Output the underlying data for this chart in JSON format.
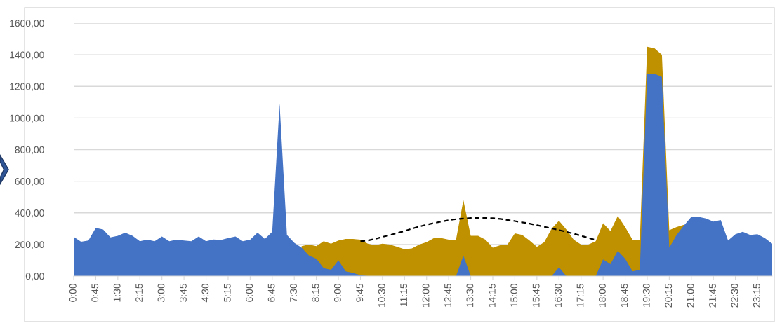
{
  "chart_data": {
    "type": "area",
    "categories": [
      "0:00",
      null,
      null,
      "0:45",
      null,
      null,
      "1:30",
      null,
      null,
      "2:15",
      null,
      null,
      "3:00",
      null,
      null,
      "3:45",
      null,
      null,
      "4:30",
      null,
      null,
      "5:15",
      null,
      null,
      "6:00",
      null,
      null,
      "6:45",
      null,
      null,
      "7:30",
      null,
      null,
      "8:15",
      null,
      null,
      "9:00",
      null,
      null,
      "9:45",
      null,
      null,
      "10:30",
      null,
      null,
      "11:15",
      null,
      null,
      "12:00",
      null,
      null,
      "12:45",
      null,
      null,
      "13:30",
      null,
      null,
      "14:15",
      null,
      null,
      "15:00",
      null,
      null,
      "15:45",
      null,
      null,
      "16:30",
      null,
      null,
      "17:15",
      null,
      null,
      "18:00",
      null,
      null,
      "18:45",
      null,
      null,
      "19:30",
      null,
      null,
      "20:15",
      null,
      null,
      "21:00",
      null,
      null,
      "21:45",
      null,
      null,
      "22:30",
      null,
      null,
      "23:15",
      null,
      null
    ],
    "series": [
      {
        "color": "#bf9000",
        "values": [
          null,
          null,
          null,
          null,
          null,
          null,
          null,
          null,
          null,
          null,
          null,
          null,
          null,
          null,
          null,
          null,
          null,
          null,
          null,
          null,
          null,
          null,
          null,
          null,
          null,
          null,
          null,
          null,
          null,
          null,
          null,
          190,
          200,
          190,
          220,
          205,
          225,
          235,
          235,
          230,
          205,
          195,
          205,
          200,
          185,
          170,
          175,
          200,
          215,
          240,
          240,
          230,
          230,
          480,
          255,
          255,
          230,
          180,
          195,
          200,
          270,
          260,
          225,
          185,
          215,
          300,
          350,
          295,
          230,
          200,
          200,
          220,
          335,
          285,
          380,
          310,
          230,
          230,
          1450,
          1440,
          1400,
          290,
          310,
          325,
          null,
          null,
          null,
          null,
          null,
          null,
          null,
          null,
          null,
          null,
          null,
          null
        ]
      },
      {
        "color": "#4472c4",
        "values": [
          248,
          217,
          225,
          305,
          295,
          245,
          255,
          275,
          255,
          220,
          230,
          220,
          250,
          220,
          230,
          225,
          220,
          250,
          220,
          232,
          228,
          240,
          250,
          220,
          230,
          275,
          235,
          280,
          1090,
          260,
          210,
          180,
          130,
          110,
          50,
          40,
          100,
          30,
          20,
          5,
          0,
          0,
          0,
          0,
          0,
          0,
          0,
          0,
          0,
          0,
          0,
          0,
          0,
          130,
          0,
          0,
          0,
          0,
          0,
          0,
          0,
          0,
          0,
          0,
          0,
          0,
          55,
          0,
          0,
          0,
          0,
          0,
          105,
          75,
          160,
          110,
          30,
          40,
          1280,
          1280,
          1260,
          180,
          260,
          320,
          375,
          375,
          365,
          345,
          355,
          225,
          265,
          280,
          260,
          265,
          240,
          205
        ]
      },
      {
        "type": "line",
        "color": "#000000",
        "line_style": "dashed",
        "values": [
          null,
          null,
          null,
          null,
          null,
          null,
          null,
          null,
          null,
          null,
          null,
          null,
          null,
          null,
          null,
          null,
          null,
          null,
          null,
          null,
          null,
          null,
          null,
          null,
          null,
          null,
          null,
          null,
          null,
          null,
          null,
          null,
          null,
          null,
          null,
          null,
          null,
          null,
          null,
          220,
          225,
          235,
          248,
          260,
          272,
          285,
          300,
          313,
          325,
          335,
          345,
          353,
          360,
          364,
          367,
          368,
          368,
          366,
          362,
          355,
          348,
          340,
          332,
          322,
          312,
          302,
          291,
          280,
          268,
          255,
          242,
          228,
          null,
          null,
          null,
          null,
          null,
          null,
          null,
          null,
          null,
          null,
          null,
          null,
          null,
          null,
          null,
          null,
          null,
          null,
          null,
          null,
          null,
          null,
          null,
          null
        ]
      }
    ],
    "ylim": [
      0,
      1600
    ],
    "yticks": [
      {
        "value": 0,
        "label": "0,00"
      },
      {
        "value": 200,
        "label": "200,00"
      },
      {
        "value": 400,
        "label": "400,00"
      },
      {
        "value": 600,
        "label": "600,00"
      },
      {
        "value": 800,
        "label": "800,00"
      },
      {
        "value": 1000,
        "label": "1000,00"
      },
      {
        "value": 1200,
        "label": "1200,00"
      },
      {
        "value": 1400,
        "label": "1400,00"
      },
      {
        "value": 1600,
        "label": "1600,00"
      }
    ],
    "grid": "y",
    "legend": false,
    "marker": "none"
  }
}
